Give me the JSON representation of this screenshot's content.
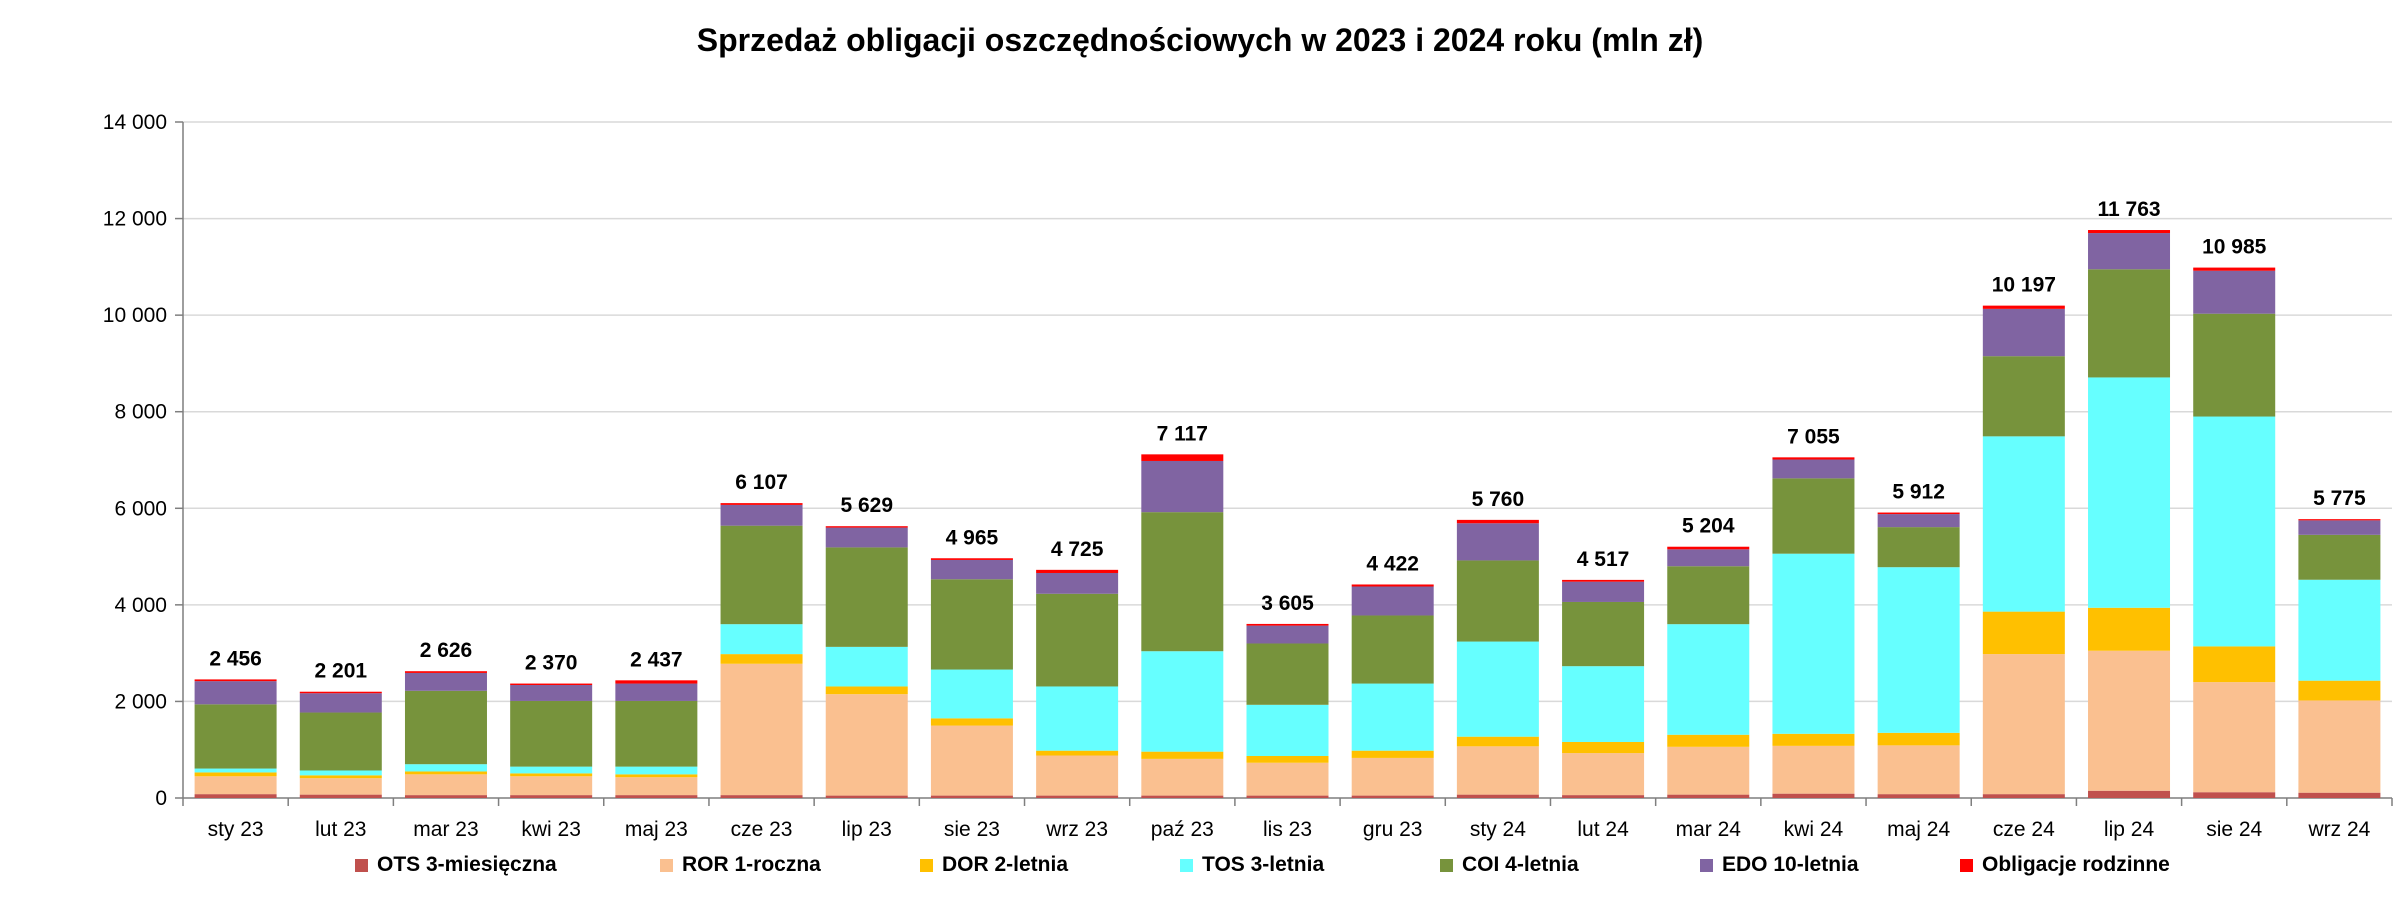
{
  "chart_data": {
    "type": "bar",
    "stacked": true,
    "title": "Sprzedaż obligacji oszczędnościowych w 2023 i 2024 roku (mln zł)",
    "xlabel": "",
    "ylabel": "",
    "ylim": [
      0,
      14000
    ],
    "yticks": [
      0,
      2000,
      4000,
      6000,
      8000,
      10000,
      12000,
      14000
    ],
    "ytick_labels": [
      "0",
      "2 000",
      "4 000",
      "6 000",
      "8 000",
      "10 000",
      "12 000",
      "14 000"
    ],
    "grid": true,
    "legend_position": "bottom",
    "categories": [
      "sty 23",
      "lut 23",
      "mar 23",
      "kwi 23",
      "maj 23",
      "cze 23",
      "lip 23",
      "sie 23",
      "wrz 23",
      "paź 23",
      "lis 23",
      "gru 23",
      "sty 24",
      "lut 24",
      "mar 24",
      "kwi 24",
      "maj 24",
      "cze 24",
      "lip 24",
      "sie 24",
      "wrz 24"
    ],
    "totals": [
      2456,
      2201,
      2626,
      2370,
      2437,
      6107,
      5629,
      4965,
      4725,
      7117,
      3605,
      4422,
      5760,
      4517,
      5204,
      7055,
      5912,
      10197,
      11763,
      10985,
      5775
    ],
    "total_labels": [
      "2 456",
      "2 201",
      "2 626",
      "2 370",
      "2 437",
      "6 107",
      "5 629",
      "4 965",
      "4 725",
      "7 117",
      "3 605",
      "4 422",
      "5 760",
      "4 517",
      "5 204",
      "7 055",
      "5 912",
      "10 197",
      "11 763",
      "10 985",
      "5 775"
    ],
    "series": [
      {
        "name": "OTS 3-miesięczna",
        "color": "#c0504d",
        "values": [
          80,
          70,
          60,
          60,
          60,
          60,
          50,
          50,
          50,
          50,
          50,
          50,
          70,
          60,
          70,
          90,
          80,
          80,
          150,
          120,
          110
        ]
      },
      {
        "name": "ROR 1-roczna",
        "color": "#fac090",
        "values": [
          370,
          340,
          430,
          390,
          370,
          2720,
          2100,
          1450,
          830,
          760,
          680,
          780,
          1000,
          870,
          990,
          990,
          1010,
          2900,
          2900,
          2280,
          1910
        ]
      },
      {
        "name": "DOR 2-letnia",
        "color": "#ffc000",
        "values": [
          80,
          60,
          60,
          60,
          60,
          200,
          160,
          150,
          100,
          150,
          140,
          150,
          200,
          230,
          250,
          250,
          260,
          880,
          890,
          740,
          410
        ]
      },
      {
        "name": "TOS 3-letnia",
        "color": "#66ffff",
        "values": [
          80,
          100,
          150,
          140,
          160,
          620,
          820,
          1010,
          1330,
          2080,
          1060,
          1390,
          1970,
          1570,
          2290,
          3730,
          3430,
          3630,
          4770,
          4760,
          2090
        ]
      },
      {
        "name": "COI 4-letnia",
        "color": "#77933c",
        "values": [
          1330,
          1200,
          1520,
          1360,
          1360,
          2040,
          2060,
          1870,
          1920,
          2880,
          1270,
          1410,
          1680,
          1330,
          1200,
          1560,
          830,
          1660,
          2240,
          2130,
          930
        ]
      },
      {
        "name": "EDO 10-letnia",
        "color": "#8064a2",
        "values": [
          480,
          400,
          370,
          330,
          360,
          430,
          410,
          400,
          430,
          1060,
          370,
          600,
          770,
          420,
          350,
          390,
          270,
          980,
          750,
          890,
          300
        ]
      },
      {
        "name": "Obligacje rodzinne",
        "color": "#ff0000",
        "values": [
          36,
          31,
          36,
          30,
          67,
          37,
          29,
          35,
          65,
          137,
          35,
          42,
          70,
          37,
          54,
          45,
          32,
          67,
          63,
          65,
          25
        ]
      }
    ]
  }
}
